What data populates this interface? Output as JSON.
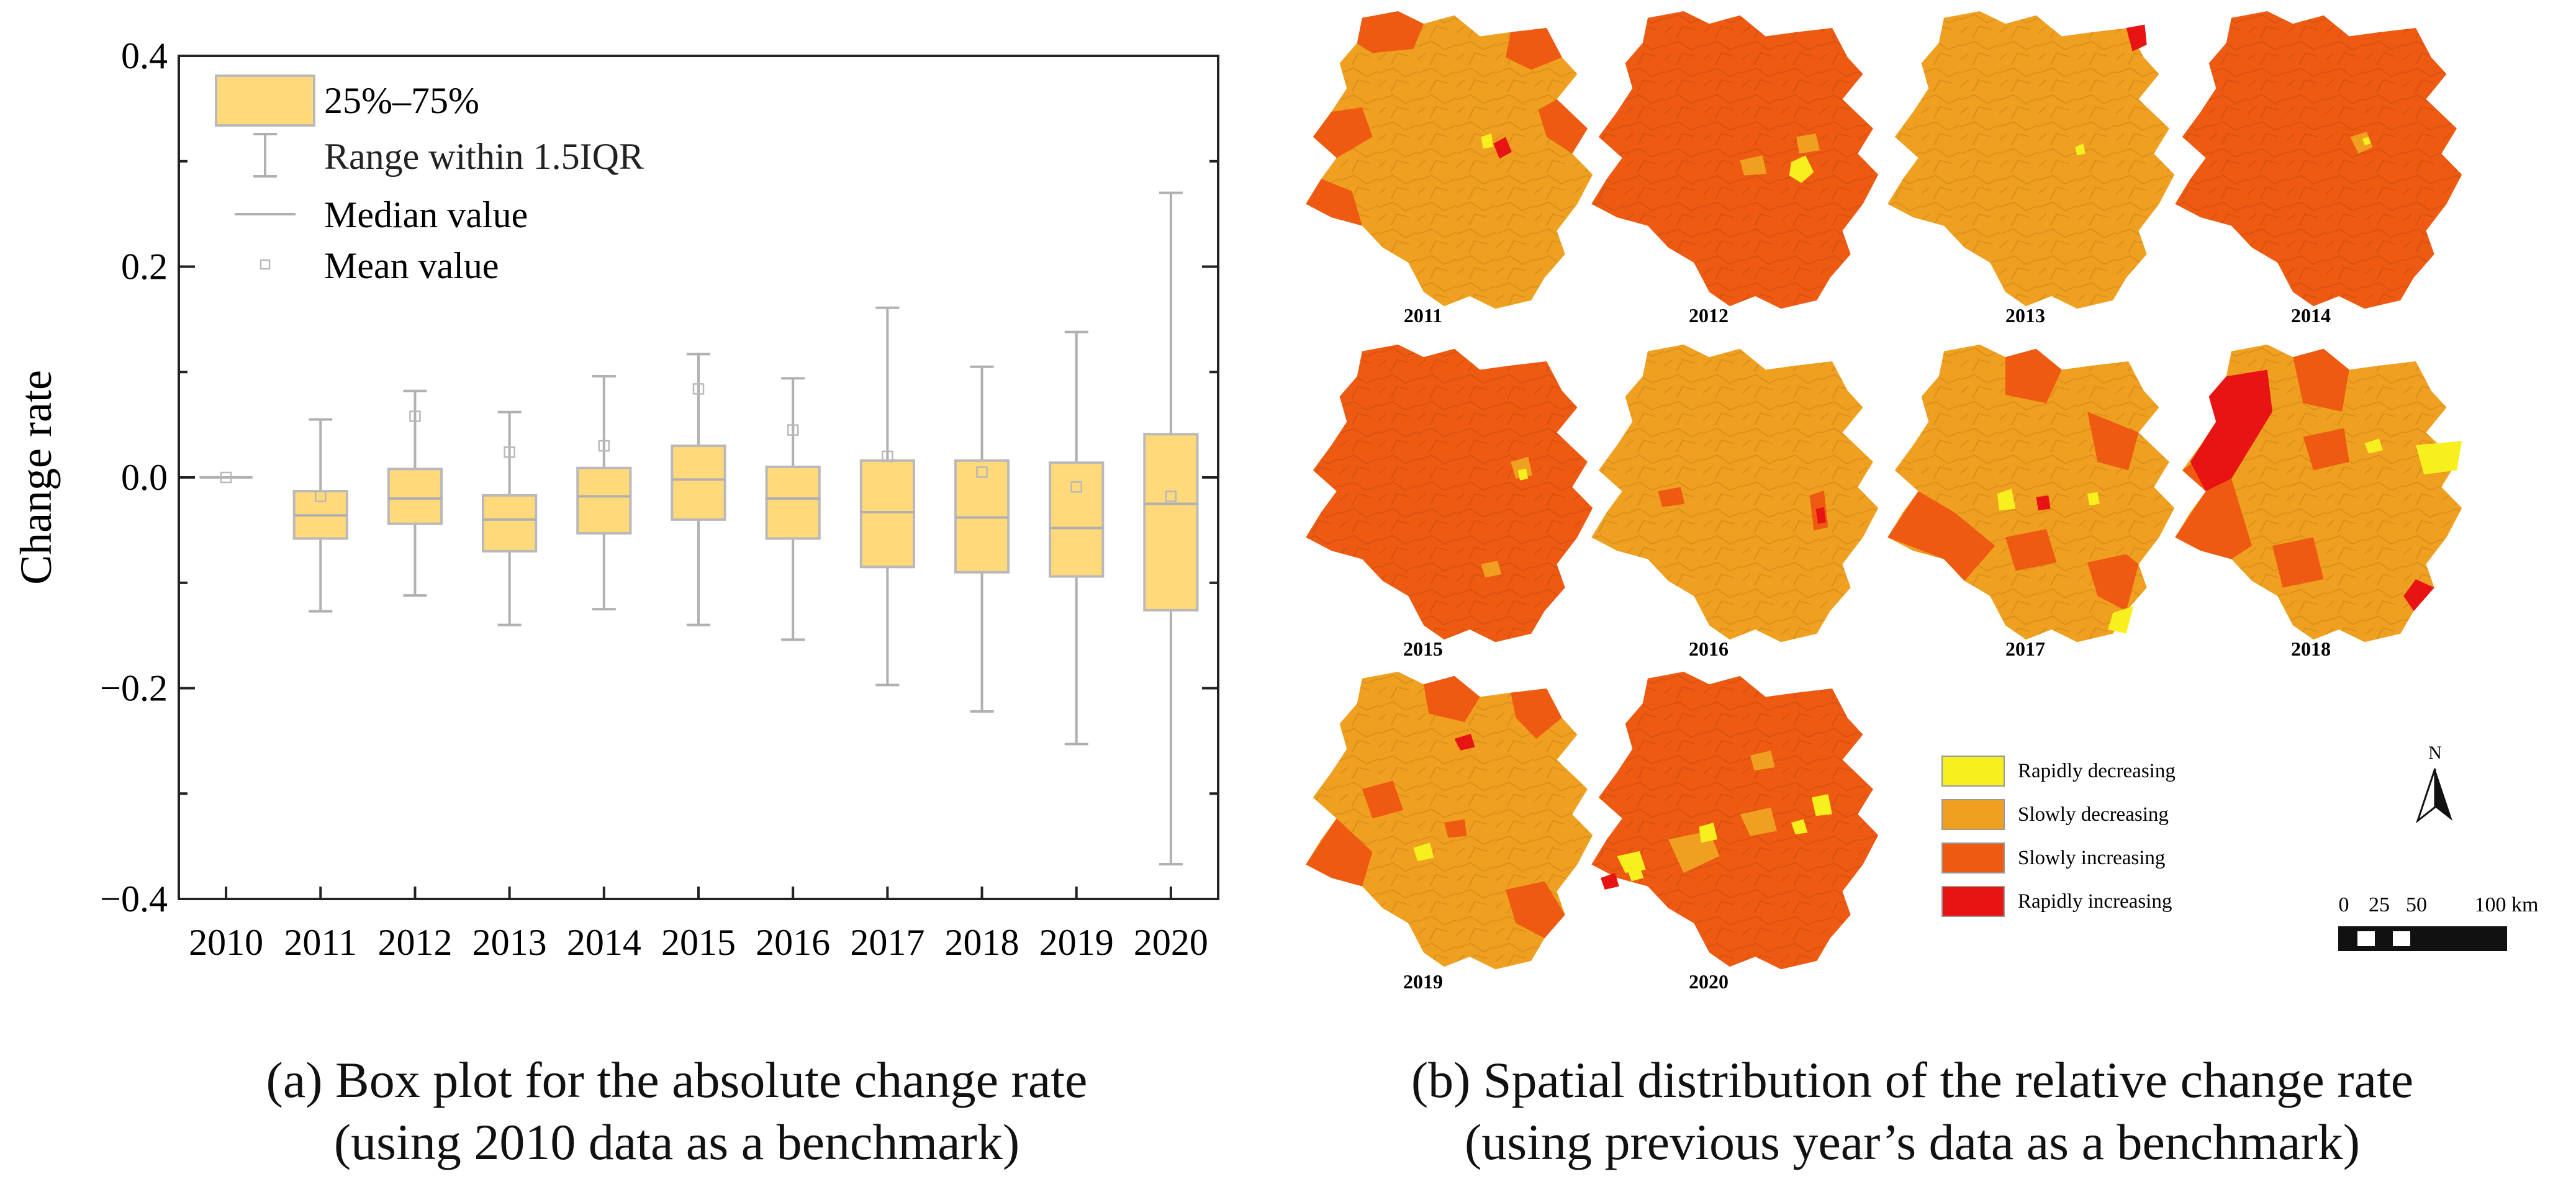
{
  "chart_data": {
    "type": "box",
    "title": "",
    "ylabel": "Change rate",
    "xlabel": "",
    "ylim": [
      -0.4,
      0.4
    ],
    "yticks": [
      -0.4,
      -0.2,
      0.0,
      0.2,
      0.4
    ],
    "ytick_labels": [
      "−0.4",
      "−0.2",
      "0.0",
      "0.2",
      "0.4"
    ],
    "categories": [
      "2010",
      "2011",
      "2012",
      "2013",
      "2014",
      "2015",
      "2016",
      "2017",
      "2018",
      "2019",
      "2020"
    ],
    "q1": [
      0.0,
      -0.058,
      -0.044,
      -0.07,
      -0.053,
      -0.04,
      -0.058,
      -0.085,
      -0.09,
      -0.094,
      -0.126
    ],
    "median": [
      0.0,
      -0.036,
      -0.02,
      -0.04,
      -0.018,
      -0.002,
      -0.02,
      -0.033,
      -0.038,
      -0.048,
      -0.025
    ],
    "q3": [
      0.0,
      -0.013,
      0.008,
      -0.017,
      0.009,
      0.03,
      0.01,
      0.016,
      0.016,
      0.014,
      0.041
    ],
    "whisker_low": [
      0.0,
      -0.127,
      -0.112,
      -0.14,
      -0.125,
      -0.14,
      -0.154,
      -0.197,
      -0.222,
      -0.253,
      -0.367
    ],
    "whisker_high": [
      0.0,
      0.055,
      0.082,
      0.062,
      0.096,
      0.117,
      0.094,
      0.161,
      0.105,
      0.138,
      0.27
    ],
    "mean": [
      0.0,
      -0.018,
      0.058,
      0.024,
      0.03,
      0.084,
      0.045,
      0.02,
      0.005,
      -0.009,
      -0.018
    ],
    "legend": {
      "position": "top-left",
      "entries": [
        "25%–75%",
        "Range within 1.5IQR",
        "Median value",
        "Mean value"
      ]
    },
    "colors": {
      "box_fill": "#FFD97A",
      "box_edge": "#B9B9B9"
    }
  },
  "map_panel": {
    "year_labels": [
      "2011",
      "2012",
      "2013",
      "2014",
      "2015",
      "2016",
      "2017",
      "2018",
      "2019",
      "2020"
    ],
    "legend": [
      {
        "label": "Rapidly decreasing",
        "color": "#F7F01E"
      },
      {
        "label": "Slowly decreasing",
        "color": "#F0A020"
      },
      {
        "label": "Slowly increasing",
        "color": "#EE5A12"
      },
      {
        "label": "Rapidly increasing",
        "color": "#E81414"
      }
    ],
    "north_label": "N",
    "scale_labels": [
      "0",
      "25",
      "50",
      "100 km"
    ]
  },
  "captions": {
    "a_line1": "(a)  Box plot for the absolute change rate",
    "a_line2": "(using 2010 data as a benchmark)",
    "b_line1": "(b) Spatial distribution of the relative change rate",
    "b_line2": "(using previous year’s data as a benchmark)"
  }
}
